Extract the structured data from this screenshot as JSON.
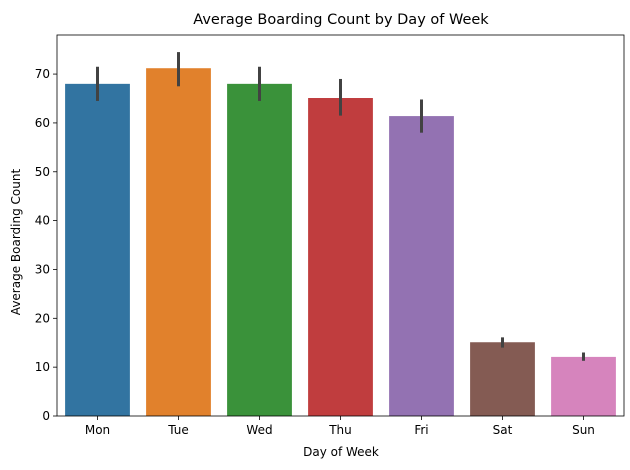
{
  "chart_data": {
    "type": "bar",
    "title": "Average Boarding Count by Day of Week",
    "xlabel": "Day of Week",
    "ylabel": "Average Boarding Count",
    "categories": [
      "Mon",
      "Tue",
      "Wed",
      "Thu",
      "Fri",
      "Sat",
      "Sun"
    ],
    "values": [
      68.0,
      71.2,
      68.0,
      65.1,
      61.4,
      15.1,
      12.1
    ],
    "error_low": [
      64.5,
      67.5,
      64.5,
      61.5,
      58.0,
      14.0,
      11.3
    ],
    "error_high": [
      71.5,
      74.5,
      71.5,
      69.0,
      64.8,
      16.1,
      13.0
    ],
    "colors": [
      "#3274a1",
      "#e1812c",
      "#3a923a",
      "#c03d3e",
      "#9372b2",
      "#845b53",
      "#d684bd"
    ],
    "error_color": "#424242",
    "ylim": [
      0,
      78
    ],
    "yticks": [
      0,
      10,
      20,
      30,
      40,
      50,
      60,
      70
    ],
    "grid": false,
    "legend": "none"
  }
}
